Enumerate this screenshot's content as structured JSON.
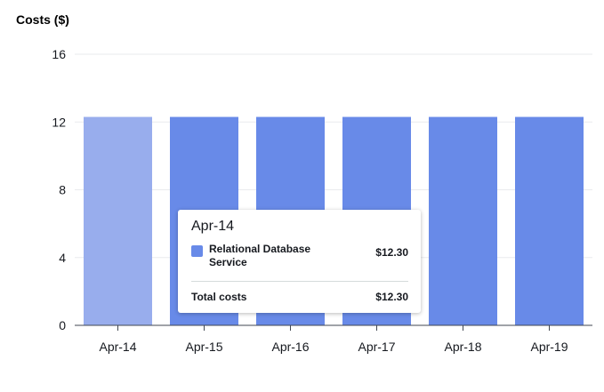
{
  "chart_data": {
    "type": "bar",
    "ylabel": "Costs ($)",
    "categories": [
      "Apr-14",
      "Apr-15",
      "Apr-16",
      "Apr-17",
      "Apr-18",
      "Apr-19"
    ],
    "series": [
      {
        "name": "Relational Database Service",
        "values": [
          12.3,
          12.3,
          12.3,
          12.3,
          12.3,
          12.3
        ]
      }
    ],
    "ylim": [
      0,
      16
    ],
    "yticks": [
      0,
      4,
      8,
      12,
      16
    ],
    "grid": true,
    "highlighted_index": 0
  },
  "colors": {
    "bar": "#688ae8",
    "bar_highlight": "#98aded",
    "grid": "#e9ebed",
    "axis": "#414750"
  },
  "tooltip": {
    "title": "Apr-14",
    "series_label": "Relational Database Service",
    "series_value": "$12.30",
    "total_label": "Total costs",
    "total_value": "$12.30"
  }
}
